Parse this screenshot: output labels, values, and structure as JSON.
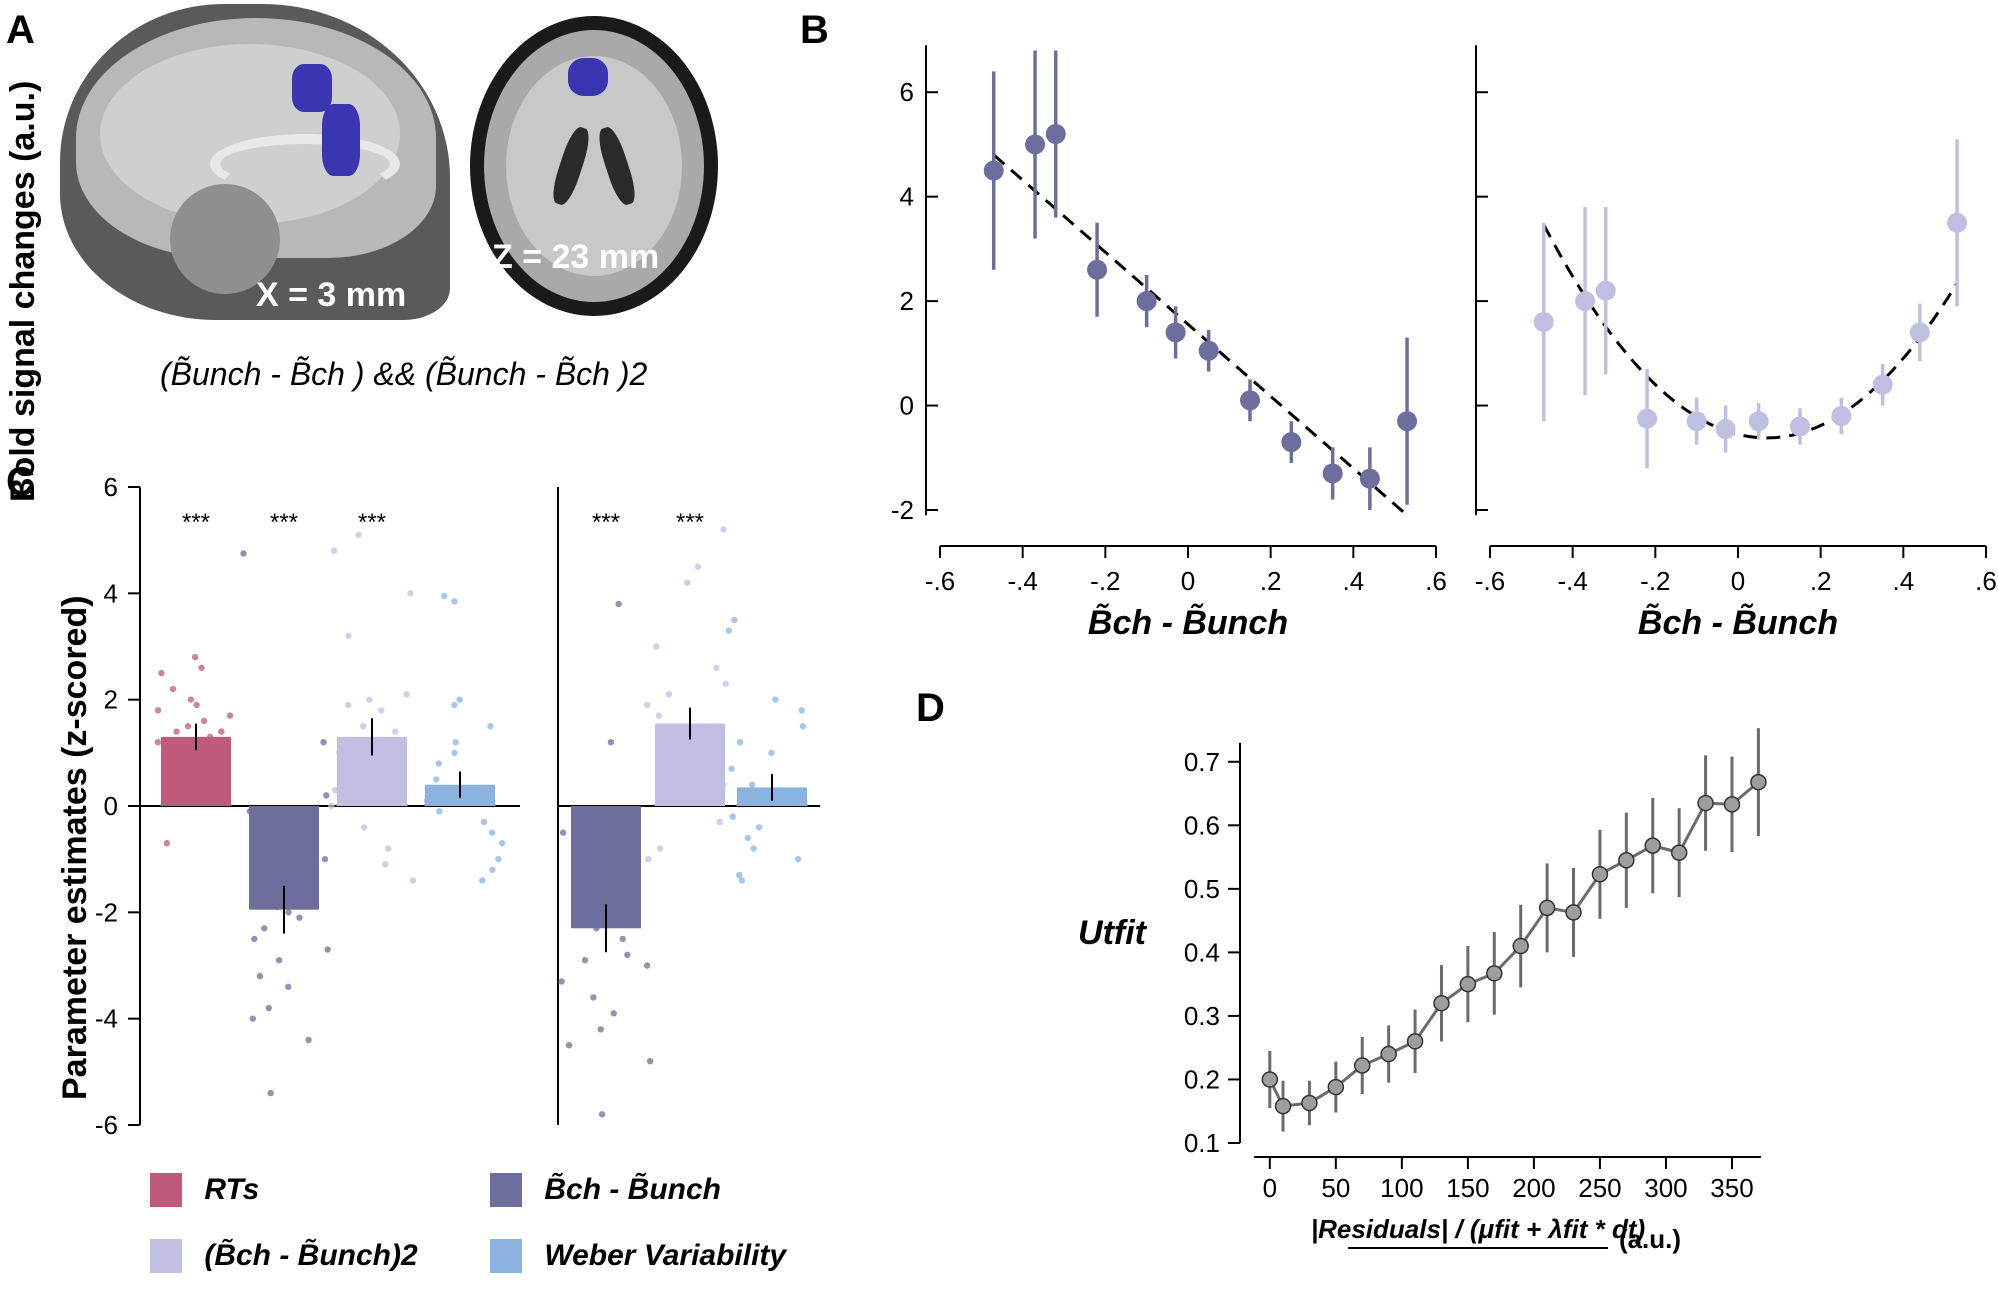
{
  "panels": {
    "A": "A",
    "B": "B",
    "C": "C",
    "D": "D"
  },
  "brain": {
    "sagittal_label": "X = 3 mm",
    "axial_label": "Z = 23 mm",
    "highlight_color": "#3a35b0",
    "contrast_caption": "(B̃unch - B̃ch ) && (B̃unch - B̃ch )2"
  },
  "colors": {
    "rts": "#c05a7d",
    "linear": "#6e6e9e",
    "quadratic": "#c0bfe2",
    "weber": "#8bb3e0",
    "grey": "#9e9e9e"
  },
  "chart_data": [
    {
      "id": "B-left",
      "type": "scatter",
      "ylabel": "Bold signal changes (a.u.)",
      "xlabel": "B̃ch - B̃unch",
      "xlim": [
        -0.6,
        0.6
      ],
      "ylim": [
        -2,
        7
      ],
      "xticks": [
        -0.6,
        -0.4,
        -0.2,
        0,
        0.2,
        0.4,
        0.6
      ],
      "xtick_labels": [
        "-.6",
        "-.4",
        "-.2",
        "0",
        ".2",
        ".4",
        ".6"
      ],
      "yticks": [
        -2,
        0,
        2,
        4,
        6
      ],
      "ytick_labels": [
        "-2",
        "0",
        "2",
        "4",
        "6"
      ],
      "x": [
        -0.47,
        -0.37,
        -0.32,
        -0.22,
        -0.1,
        -0.03,
        0.05,
        0.15,
        0.25,
        0.35,
        0.44,
        0.53
      ],
      "y": [
        4.5,
        5.0,
        5.2,
        2.6,
        2.0,
        1.4,
        1.05,
        0.1,
        -0.7,
        -1.3,
        -1.4,
        -0.3
      ],
      "err": [
        1.9,
        1.8,
        1.6,
        0.9,
        0.5,
        0.5,
        0.4,
        0.4,
        0.4,
        0.5,
        0.6,
        1.6
      ],
      "fit": {
        "type": "linear",
        "x0": -0.47,
        "y0": 4.8,
        "x1": 0.53,
        "y1": -2.1
      }
    },
    {
      "id": "B-right",
      "type": "scatter",
      "xlabel": "B̃ch - B̃unch",
      "xlim": [
        -0.6,
        0.6
      ],
      "ylim": [
        -2,
        7
      ],
      "xticks": [
        -0.6,
        -0.4,
        -0.2,
        0,
        0.2,
        0.4,
        0.6
      ],
      "xtick_labels": [
        "-.6",
        "-.4",
        "-.2",
        "0",
        ".2",
        ".4",
        ".6"
      ],
      "yticks": [
        -2,
        0,
        2,
        4,
        6
      ],
      "x": [
        -0.47,
        -0.37,
        -0.32,
        -0.22,
        -0.1,
        -0.03,
        0.05,
        0.15,
        0.25,
        0.35,
        0.44,
        0.53
      ],
      "y": [
        1.6,
        2.0,
        2.2,
        -0.25,
        -0.3,
        -0.45,
        -0.3,
        -0.4,
        -0.2,
        0.4,
        1.4,
        3.5
      ],
      "err": [
        1.9,
        1.8,
        1.6,
        0.95,
        0.45,
        0.45,
        0.35,
        0.35,
        0.35,
        0.4,
        0.55,
        1.6
      ],
      "fit": {
        "type": "quadratic",
        "a": 14.0,
        "b": 0.07,
        "c": -0.62,
        "xmin": -0.47,
        "xmax": 0.53
      }
    },
    {
      "id": "C",
      "type": "bar",
      "ylabel": "Parameter estimates (z-scored)",
      "ylim": [
        -6,
        6
      ],
      "yticks": [
        -6,
        -4,
        -2,
        0,
        2,
        4,
        6
      ],
      "ytick_labels": [
        "-6",
        "-4",
        "-2",
        "0",
        "2",
        "4",
        "6"
      ],
      "groups": [
        {
          "bars": [
            {
              "name": "RTs",
              "value": 1.3,
              "err": 0.25,
              "stars": "***",
              "points": [
                2.8,
                2.6,
                2.5,
                2.2,
                2.0,
                1.9,
                1.8,
                1.7,
                1.6,
                1.5,
                1.4,
                1.4,
                1.3,
                1.2,
                1.1,
                1.0,
                0.9,
                0.7,
                0.3,
                0.2,
                -0.7
              ]
            },
            {
              "name": "Bch - Bunch",
              "value": -1.95,
              "err": 0.45,
              "stars": "***",
              "points": [
                4.75,
                1.2,
                0.2,
                -0.1,
                -0.5,
                -1.0,
                -1.5,
                -1.9,
                -2.0,
                -2.1,
                -2.3,
                -2.5,
                -2.7,
                -2.9,
                -3.2,
                -3.4,
                -3.8,
                -4.0,
                -4.4,
                -5.4
              ]
            },
            {
              "name": "(Bch - Bunch)2",
              "value": 1.3,
              "err": 0.35,
              "stars": "***",
              "points": [
                5.1,
                4.8,
                4.0,
                3.2,
                2.1,
                2.0,
                1.9,
                1.8,
                1.5,
                1.4,
                1.2,
                1.0,
                0.8,
                0.5,
                0.3,
                0.0,
                -0.4,
                -0.8,
                -1.1,
                -1.4
              ]
            },
            {
              "name": "Weber Variability",
              "value": 0.4,
              "err": 0.25,
              "stars": "",
              "points": [
                3.95,
                3.85,
                2.0,
                1.9,
                1.5,
                1.2,
                1.0,
                0.8,
                0.5,
                0.3,
                0.1,
                -0.1,
                -0.3,
                -0.5,
                -0.7,
                -1.0,
                -1.2,
                -1.4
              ]
            }
          ]
        },
        {
          "bars": [
            {
              "name": "Bch - Bunch",
              "value": -2.3,
              "err": 0.45,
              "stars": "***",
              "points": [
                3.8,
                1.2,
                -0.5,
                -1.0,
                -1.5,
                -2.0,
                -2.3,
                -2.5,
                -2.8,
                -2.9,
                -3.0,
                -3.3,
                -3.6,
                -3.9,
                -4.2,
                -4.5,
                -4.8,
                -5.8
              ]
            },
            {
              "name": "(Bch - Bunch)2",
              "value": 1.55,
              "err": 0.3,
              "stars": "***",
              "points": [
                5.2,
                4.5,
                4.2,
                3.0,
                2.6,
                2.3,
                2.1,
                1.9,
                1.7,
                1.5,
                1.2,
                0.8,
                0.4,
                0.2,
                -0.3,
                -0.8,
                -1.0
              ]
            },
            {
              "name": "Weber Variability",
              "value": 0.35,
              "err": 0.25,
              "stars": "",
              "points": [
                3.5,
                3.3,
                2.0,
                1.8,
                1.5,
                1.2,
                1.0,
                0.7,
                0.4,
                0.2,
                -0.2,
                -0.4,
                -0.6,
                -0.8,
                -1.0,
                -1.3,
                -1.4
              ]
            }
          ]
        }
      ],
      "legend": [
        {
          "label": "RTs",
          "color_key": "rts"
        },
        {
          "label": "B̃ch - B̃unch",
          "color_key": "linear"
        },
        {
          "label": "(B̃ch - B̃unch)2",
          "color_key": "quadratic"
        },
        {
          "label": "Weber Variability",
          "color_key": "weber"
        }
      ]
    },
    {
      "id": "D",
      "type": "line",
      "ylabel": "Utfit",
      "xlabel": "|Residuals| / (μfit + λfit * dt)",
      "xlabel_unit": "(a.u.)",
      "xlim": [
        -15,
        375
      ],
      "ylim": [
        0.1,
        0.75
      ],
      "xticks": [
        0,
        50,
        100,
        150,
        200,
        250,
        300,
        350
      ],
      "xtick_labels": [
        "0",
        "50",
        "100",
        "150",
        "200",
        "250",
        "300",
        "350"
      ],
      "yticks": [
        0.1,
        0.2,
        0.3,
        0.4,
        0.5,
        0.6,
        0.7
      ],
      "ytick_labels": [
        "0.1",
        "0.2",
        "0.3",
        "0.4",
        "0.5",
        "0.6",
        "0.7"
      ],
      "x": [
        0,
        10,
        30,
        50,
        70,
        90,
        110,
        130,
        150,
        170,
        190,
        210,
        230,
        250,
        270,
        290,
        310,
        330,
        350,
        370
      ],
      "y": [
        0.2,
        0.158,
        0.163,
        0.188,
        0.222,
        0.24,
        0.26,
        0.32,
        0.35,
        0.367,
        0.41,
        0.47,
        0.463,
        0.523,
        0.545,
        0.568,
        0.557,
        0.635,
        0.633,
        0.668
      ],
      "err": [
        0.045,
        0.04,
        0.035,
        0.04,
        0.045,
        0.045,
        0.05,
        0.06,
        0.06,
        0.065,
        0.065,
        0.07,
        0.07,
        0.07,
        0.075,
        0.075,
        0.07,
        0.075,
        0.075,
        0.085
      ]
    }
  ]
}
